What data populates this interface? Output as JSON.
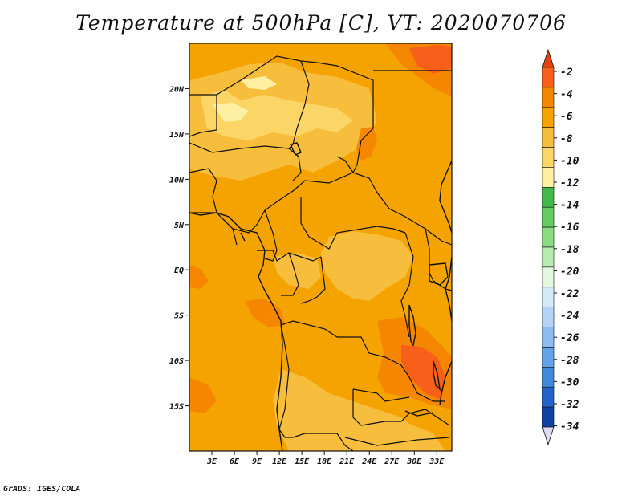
{
  "title": "Temperature at 500hPa [C], VT: 2020070706",
  "footer": "GrADS: IGES/COLA",
  "map": {
    "lon_range": [
      0,
      35
    ],
    "lat_range": [
      -20,
      25
    ],
    "x_ticks": [
      "3E",
      "6E",
      "9E",
      "12E",
      "15E",
      "18E",
      "21E",
      "24E",
      "27E",
      "30E",
      "33E"
    ],
    "x_tick_values": [
      3,
      6,
      9,
      12,
      15,
      18,
      21,
      24,
      27,
      30,
      33
    ],
    "y_ticks": [
      "20N",
      "15N",
      "10N",
      "5N",
      "EQ",
      "5S",
      "10S",
      "15S"
    ],
    "y_tick_values": [
      20,
      15,
      10,
      5,
      0,
      -5,
      -10,
      -15
    ],
    "base_color": "#f5a300",
    "border_color": "#111111"
  },
  "colorbar": {
    "labels": [
      "-2",
      "-4",
      "-6",
      "-8",
      "-10",
      "-12",
      "-14",
      "-16",
      "-18",
      "-20",
      "-22",
      "-24",
      "-26",
      "-28",
      "-30",
      "-32",
      "-34"
    ],
    "colors": [
      "#f75f1a",
      "#f58700",
      "#f5a300",
      "#f7bd3c",
      "#fbd566",
      "#fdf0a2",
      "#42b94a",
      "#63cc61",
      "#8adc83",
      "#b7eaaf",
      "#e1f8df",
      "#d4e9f8",
      "#b3d4f5",
      "#8dbcf0",
      "#64a3e8",
      "#3f88db",
      "#2363c8",
      "#1041a5",
      "#0a1a6f"
    ],
    "top_color": "#e8410c",
    "bottom_color": "#dcdcf5"
  }
}
